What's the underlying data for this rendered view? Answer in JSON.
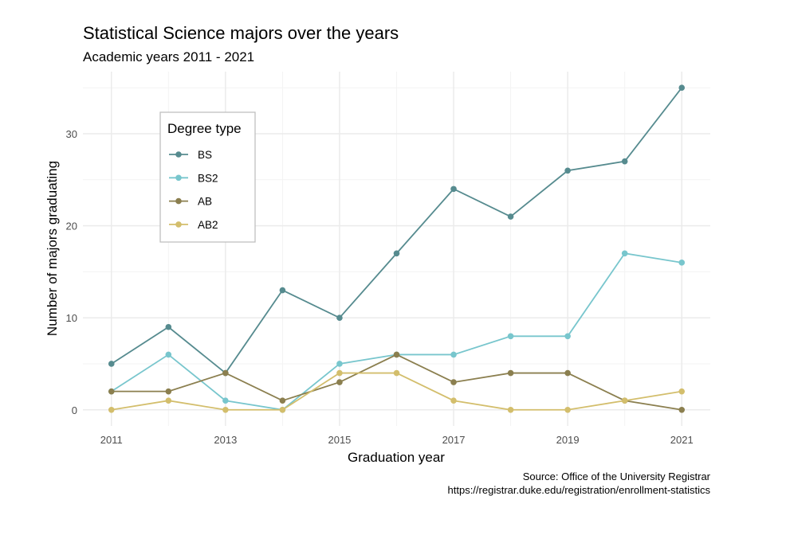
{
  "chart_data": {
    "type": "line",
    "title": "Statistical Science majors over the years",
    "subtitle": "Academic years 2011 - 2021",
    "xlabel": "Graduation year",
    "ylabel": "Number of majors graduating",
    "caption": [
      "Source: Office of the University Registrar",
      "https://registrar.duke.edu/registration/enrollment-statistics"
    ],
    "x": [
      2011,
      2012,
      2013,
      2014,
      2015,
      2016,
      2017,
      2018,
      2019,
      2020,
      2021
    ],
    "xticks": [
      2011,
      2013,
      2015,
      2017,
      2019,
      2021
    ],
    "yticks": [
      0,
      10,
      20,
      30
    ],
    "xlim": [
      2010.5,
      2021.5
    ],
    "ylim": [
      -1.75,
      36.75
    ],
    "grid": true,
    "legend": {
      "title": "Degree type",
      "placement": "top-left"
    },
    "series": [
      {
        "name": "BS",
        "color": "#568b8f",
        "values": [
          5,
          9,
          4,
          13,
          10,
          17,
          24,
          21,
          26,
          27,
          35
        ]
      },
      {
        "name": "BS2",
        "color": "#78c6cd",
        "values": [
          2,
          6,
          1,
          0,
          5,
          6,
          6,
          8,
          8,
          17,
          16
        ]
      },
      {
        "name": "AB",
        "color": "#8b7f4f",
        "values": [
          2,
          2,
          4,
          1,
          3,
          6,
          3,
          4,
          4,
          1,
          0
        ]
      },
      {
        "name": "AB2",
        "color": "#d3be6c",
        "values": [
          0,
          1,
          0,
          0,
          4,
          4,
          1,
          0,
          0,
          1,
          2
        ]
      }
    ]
  }
}
